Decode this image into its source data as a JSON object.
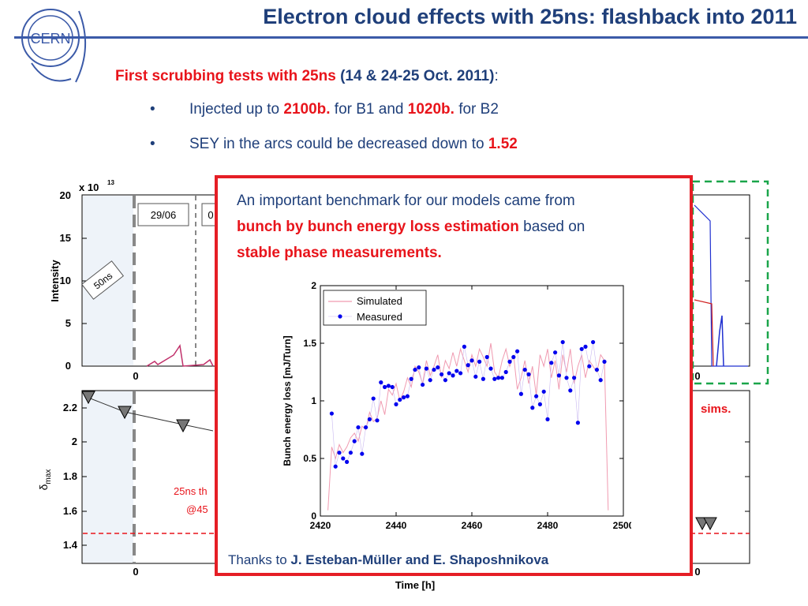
{
  "slide": {
    "title": "Electron cloud effects with 25ns: flashback into 2011",
    "logo_text": "CERN",
    "subtitle_red": "First scrubbing tests with 25ns",
    "subtitle_navy": "(14 & 24-25 Oct. 2011)",
    "subtitle_colon": ":",
    "bullets": [
      {
        "pre": "Injected up to ",
        "hl1": "2100b.",
        "mid": " for B1 and ",
        "hl2": "1020b.",
        "post": " for B2"
      },
      {
        "pre": "SEY in the arcs could be decreased down to ",
        "hl1": "1.52"
      }
    ],
    "bullet_glyph": "•"
  },
  "top_plot": {
    "exponent": "x 10",
    "exponent_power": "13",
    "ylabel": "Intensity",
    "yticks": [
      "20",
      "15",
      "10",
      "5",
      "0"
    ],
    "xtick_left": "0",
    "xtick_right": "0",
    "date_box_1": "29/06",
    "date_box_2": "0",
    "label_50ns": "50ns"
  },
  "bottom_plot": {
    "ylabel": "δmax",
    "ylabel_main": "δ",
    "ylabel_sub": "max",
    "yticks": [
      "2.2",
      "2",
      "1.8",
      "1.6",
      "1.4"
    ],
    "xtick_left": "0",
    "xtick_right": "0",
    "xlabel": "Time [h]",
    "annotation_line1": "25ns th",
    "annotation_line2": "@45",
    "right_label": "sims."
  },
  "popup": {
    "line1": "An important benchmark for our models came from",
    "hl1": "bunch by bunch energy loss estimation",
    "mid": " based on",
    "hl2": "stable phase measurements",
    "period": ".",
    "thanks_pre": "Thanks to ",
    "thanks_names": "J. Esteban-Müller and E. Shaposhnikova"
  },
  "colors": {
    "title": "#1f3f7a",
    "accent_red": "#e8141b",
    "popup_border": "#e51e25",
    "measured": "#0000ee",
    "simulated": "#f09ab0",
    "green_dash": "#1aa54a"
  },
  "chart_data": {
    "type": "scatter",
    "xlabel": "",
    "ylabel": "Bunch energy loss [mJ/Turn]",
    "xlim": [
      2420,
      2500
    ],
    "ylim": [
      0,
      2
    ],
    "xticks": [
      "2420",
      "2440",
      "2460",
      "2480",
      "2500"
    ],
    "yticks": [
      "0",
      "0.5",
      "1",
      "1.5",
      "2"
    ],
    "legend_position": "top-left",
    "series": [
      {
        "name": "Simulated",
        "style": "line",
        "x": [
          2422,
          2423,
          2424,
          2425,
          2426,
          2427,
          2428,
          2429,
          2430,
          2431,
          2432,
          2433,
          2434,
          2435,
          2436,
          2437,
          2438,
          2439,
          2440,
          2441,
          2442,
          2443,
          2444,
          2445,
          2446,
          2447,
          2448,
          2449,
          2450,
          2451,
          2452,
          2453,
          2454,
          2455,
          2456,
          2457,
          2458,
          2459,
          2460,
          2461,
          2462,
          2463,
          2464,
          2465,
          2466,
          2467,
          2468,
          2469,
          2470,
          2471,
          2472,
          2473,
          2474,
          2475,
          2476,
          2477,
          2478,
          2479,
          2480,
          2481,
          2482,
          2483,
          2484,
          2485,
          2486,
          2487,
          2488,
          2489,
          2490,
          2491,
          2492,
          2493,
          2494,
          2495,
          2496
        ],
        "values": [
          0.05,
          0.6,
          0.5,
          0.62,
          0.55,
          0.6,
          0.68,
          0.72,
          0.65,
          0.78,
          0.75,
          0.9,
          0.82,
          0.85,
          1.0,
          0.88,
          1.1,
          1.05,
          1.15,
          1.0,
          1.08,
          1.2,
          1.12,
          1.3,
          1.25,
          1.15,
          1.35,
          1.22,
          1.3,
          1.4,
          1.2,
          1.35,
          1.28,
          1.42,
          1.3,
          1.45,
          1.35,
          1.25,
          1.4,
          1.3,
          1.45,
          1.38,
          1.3,
          1.5,
          1.25,
          1.2,
          1.35,
          1.45,
          1.3,
          1.4,
          1.1,
          1.2,
          1.35,
          1.15,
          1.3,
          1.05,
          1.4,
          1.3,
          1.45,
          1.2,
          1.35,
          1.1,
          1.4,
          1.25,
          1.45,
          1.15,
          1.3,
          1.4,
          1.2,
          1.35,
          1.3,
          1.25,
          1.4,
          1.35,
          0.05
        ]
      },
      {
        "name": "Measured",
        "style": "markers",
        "x": [
          2423,
          2424,
          2425,
          2426,
          2427,
          2428,
          2429,
          2430,
          2431,
          2432,
          2433,
          2434,
          2435,
          2436,
          2437,
          2438,
          2439,
          2440,
          2441,
          2442,
          2443,
          2444,
          2445,
          2446,
          2447,
          2448,
          2449,
          2450,
          2451,
          2452,
          2453,
          2454,
          2455,
          2456,
          2457,
          2458,
          2459,
          2460,
          2461,
          2462,
          2463,
          2464,
          2465,
          2466,
          2467,
          2468,
          2469,
          2470,
          2471,
          2472,
          2473,
          2474,
          2475,
          2476,
          2477,
          2478,
          2479,
          2480,
          2481,
          2482,
          2483,
          2484,
          2485,
          2486,
          2487,
          2488,
          2489,
          2490,
          2491,
          2492,
          2493,
          2494,
          2495
        ],
        "values": [
          0.89,
          0.43,
          0.55,
          0.5,
          0.47,
          0.55,
          0.65,
          0.77,
          0.54,
          0.77,
          0.84,
          1.02,
          0.83,
          1.16,
          1.12,
          1.13,
          1.12,
          0.97,
          1.01,
          1.03,
          1.04,
          1.19,
          1.27,
          1.29,
          1.14,
          1.28,
          1.18,
          1.27,
          1.29,
          1.23,
          1.18,
          1.24,
          1.22,
          1.26,
          1.24,
          1.47,
          1.31,
          1.35,
          1.21,
          1.34,
          1.19,
          1.38,
          1.28,
          1.19,
          1.2,
          1.2,
          1.25,
          1.34,
          1.38,
          1.43,
          1.06,
          1.27,
          1.23,
          0.94,
          1.04,
          0.97,
          1.08,
          0.84,
          1.33,
          1.42,
          1.22,
          1.51,
          1.2,
          1.09,
          1.2,
          0.81,
          1.45,
          1.47,
          1.3,
          1.51,
          1.27,
          1.18,
          1.34
        ]
      }
    ]
  }
}
